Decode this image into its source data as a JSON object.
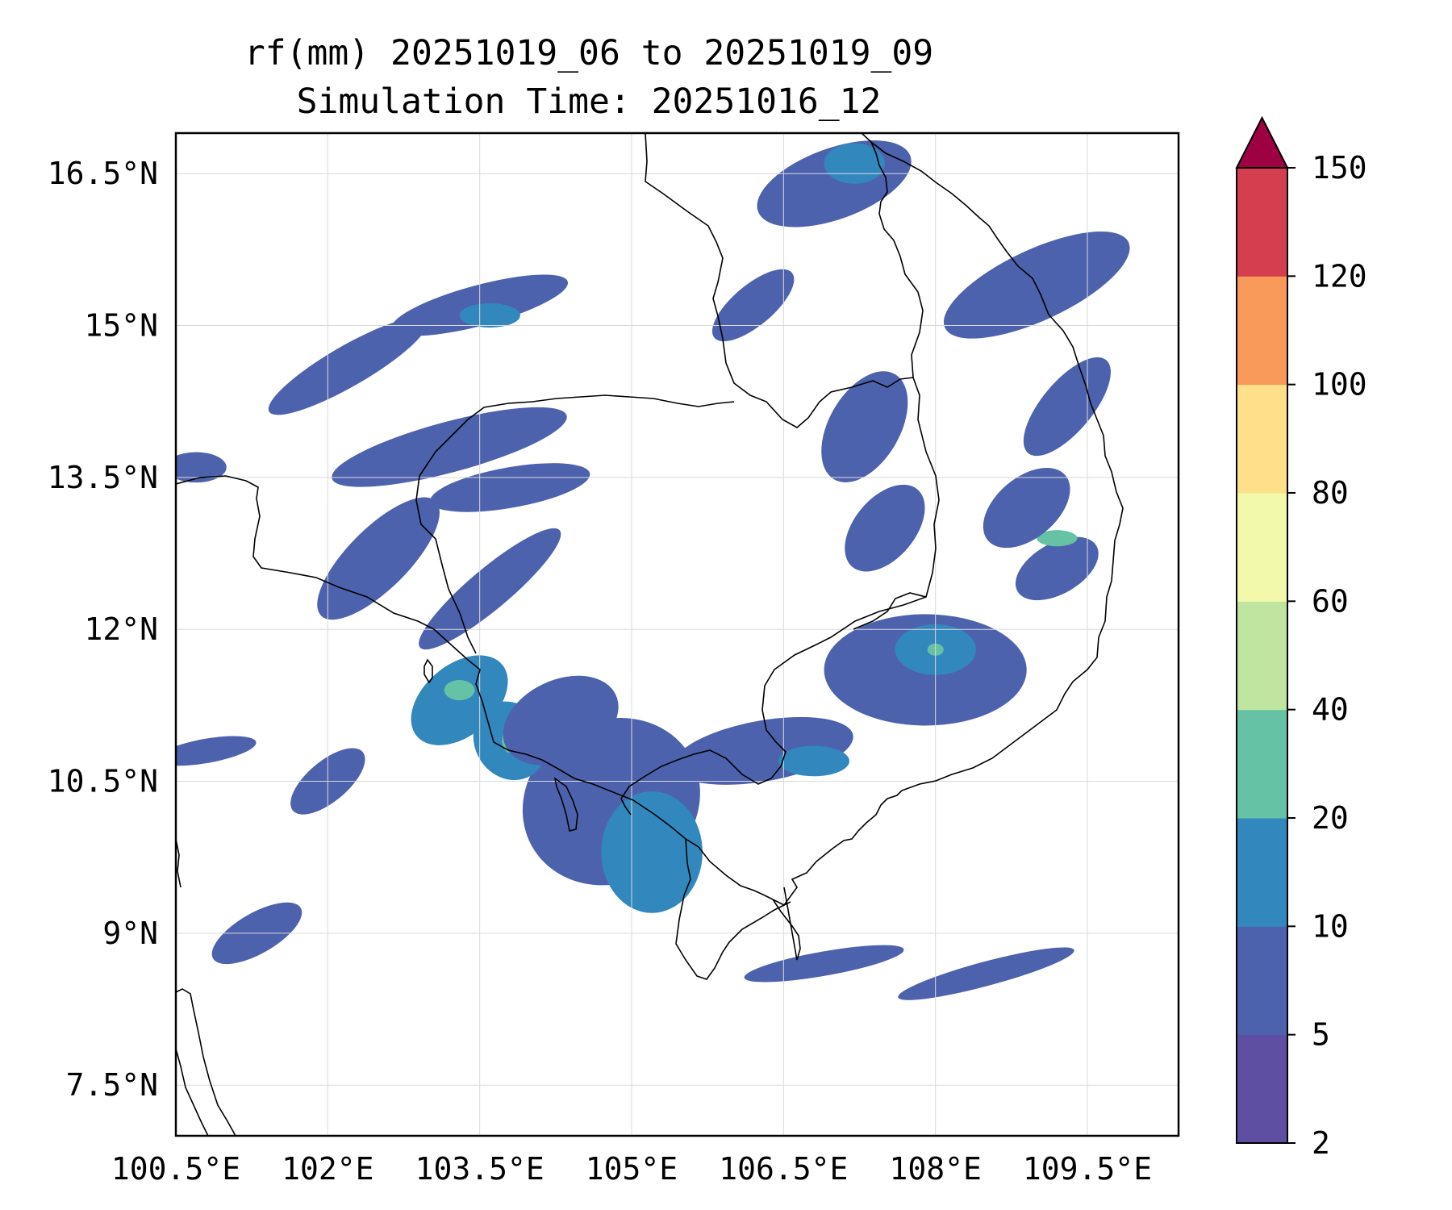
{
  "chart_data": {
    "type": "heatmap",
    "title": "rf(mm) 20251019_06 to 20251019_09",
    "subtitle": "Simulation Time: 20251016_12",
    "variable": "rf(mm)",
    "x_ticks": [
      "100.5°E",
      "102°E",
      "103.5°E",
      "105°E",
      "106.5°E",
      "108°E",
      "109.5°E"
    ],
    "x_tick_values": [
      100.5,
      102,
      103.5,
      105,
      106.5,
      108,
      109.5
    ],
    "y_ticks": [
      "16.5°N",
      "15°N",
      "13.5°N",
      "12°N",
      "10.5°N",
      "9°N",
      "7.5°N"
    ],
    "y_tick_values": [
      16.5,
      15,
      13.5,
      12,
      10.5,
      9,
      7.5
    ],
    "xlim": [
      100.5,
      110.4
    ],
    "ylim": [
      7.0,
      16.9
    ],
    "colorbar": {
      "levels": [
        2,
        5,
        10,
        20,
        40,
        60,
        80,
        100,
        120,
        150
      ],
      "tick_labels": [
        "2",
        "5",
        "10",
        "20",
        "40",
        "60",
        "80",
        "100",
        "120",
        "150"
      ],
      "colors": [
        "#5e4fa2",
        "#4d62ad",
        "#3288bd",
        "#66c2a5",
        "#bfe5a0",
        "#f3f9aa",
        "#fedf8a",
        "#f99a5a",
        "#d53e4f"
      ],
      "extend_color": "#9e0142",
      "extend": "max"
    },
    "rain_features": [
      {
        "lon": 104.8,
        "lat": 10.3,
        "rx": 0.9,
        "ry": 0.8,
        "level": 1,
        "rot": -30
      },
      {
        "lon": 105.2,
        "lat": 9.8,
        "rx": 0.5,
        "ry": 0.6,
        "level": 2,
        "rot": 0
      },
      {
        "lon": 103.3,
        "lat": 11.3,
        "rx": 0.55,
        "ry": 0.35,
        "level": 2,
        "rot": -40
      },
      {
        "lon": 103.3,
        "lat": 11.4,
        "rx": 0.15,
        "ry": 0.1,
        "level": 3,
        "rot": 0
      },
      {
        "lon": 103.8,
        "lat": 10.9,
        "rx": 0.35,
        "ry": 0.4,
        "level": 2,
        "rot": -30
      },
      {
        "lon": 103.8,
        "lat": 10.9,
        "rx": 0.08,
        "ry": 0.12,
        "level": 3,
        "rot": 0
      },
      {
        "lon": 104.3,
        "lat": 11.1,
        "rx": 0.6,
        "ry": 0.4,
        "level": 1,
        "rot": -25
      },
      {
        "lon": 107.9,
        "lat": 11.6,
        "rx": 1.0,
        "ry": 0.55,
        "level": 1,
        "rot": 0
      },
      {
        "lon": 108.0,
        "lat": 11.8,
        "rx": 0.4,
        "ry": 0.25,
        "level": 2,
        "rot": 0
      },
      {
        "lon": 108.0,
        "lat": 11.8,
        "rx": 0.08,
        "ry": 0.06,
        "level": 3,
        "rot": 0
      },
      {
        "lon": 109.2,
        "lat": 12.6,
        "rx": 0.45,
        "ry": 0.25,
        "level": 1,
        "rot": -30
      },
      {
        "lon": 109.2,
        "lat": 12.9,
        "rx": 0.2,
        "ry": 0.08,
        "level": 3,
        "rot": 0
      },
      {
        "lon": 108.9,
        "lat": 13.2,
        "rx": 0.5,
        "ry": 0.3,
        "level": 1,
        "rot": -40
      },
      {
        "lon": 109.0,
        "lat": 15.4,
        "rx": 1.0,
        "ry": 0.35,
        "level": 1,
        "rot": -25
      },
      {
        "lon": 107.0,
        "lat": 16.4,
        "rx": 0.8,
        "ry": 0.35,
        "level": 1,
        "rot": -20
      },
      {
        "lon": 107.2,
        "lat": 16.6,
        "rx": 0.3,
        "ry": 0.2,
        "level": 2,
        "rot": 0
      },
      {
        "lon": 103.5,
        "lat": 15.2,
        "rx": 0.9,
        "ry": 0.2,
        "level": 1,
        "rot": -15
      },
      {
        "lon": 103.6,
        "lat": 15.1,
        "rx": 0.3,
        "ry": 0.12,
        "level": 2,
        "rot": 0
      },
      {
        "lon": 102.2,
        "lat": 14.6,
        "rx": 0.9,
        "ry": 0.2,
        "level": 1,
        "rot": -30
      },
      {
        "lon": 103.2,
        "lat": 13.8,
        "rx": 1.2,
        "ry": 0.25,
        "level": 1,
        "rot": -15
      },
      {
        "lon": 103.8,
        "lat": 13.4,
        "rx": 0.8,
        "ry": 0.2,
        "level": 1,
        "rot": -10
      },
      {
        "lon": 102.5,
        "lat": 12.7,
        "rx": 0.8,
        "ry": 0.3,
        "level": 1,
        "rot": -45
      },
      {
        "lon": 103.6,
        "lat": 12.4,
        "rx": 0.9,
        "ry": 0.2,
        "level": 1,
        "rot": -40
      },
      {
        "lon": 106.3,
        "lat": 10.8,
        "rx": 0.9,
        "ry": 0.3,
        "level": 1,
        "rot": -10
      },
      {
        "lon": 106.8,
        "lat": 10.7,
        "rx": 0.35,
        "ry": 0.15,
        "level": 2,
        "rot": 0
      },
      {
        "lon": 107.3,
        "lat": 14.0,
        "rx": 0.6,
        "ry": 0.35,
        "level": 1,
        "rot": -60
      },
      {
        "lon": 107.5,
        "lat": 13.0,
        "rx": 0.5,
        "ry": 0.3,
        "level": 1,
        "rot": -50
      },
      {
        "lon": 106.2,
        "lat": 15.2,
        "rx": 0.5,
        "ry": 0.2,
        "level": 1,
        "rot": -40
      },
      {
        "lon": 101.3,
        "lat": 9.0,
        "rx": 0.5,
        "ry": 0.2,
        "level": 1,
        "rot": -30
      },
      {
        "lon": 102.0,
        "lat": 10.5,
        "rx": 0.45,
        "ry": 0.2,
        "level": 1,
        "rot": -40
      },
      {
        "lon": 100.8,
        "lat": 10.8,
        "rx": 0.5,
        "ry": 0.12,
        "level": 1,
        "rot": -10
      },
      {
        "lon": 106.9,
        "lat": 8.7,
        "rx": 0.8,
        "ry": 0.12,
        "level": 1,
        "rot": -10
      },
      {
        "lon": 108.5,
        "lat": 8.6,
        "rx": 0.9,
        "ry": 0.12,
        "level": 1,
        "rot": -15
      },
      {
        "lon": 109.3,
        "lat": 14.2,
        "rx": 0.6,
        "ry": 0.25,
        "level": 1,
        "rot": -50
      },
      {
        "lon": 100.7,
        "lat": 13.6,
        "rx": 0.3,
        "ry": 0.15,
        "level": 1,
        "rot": 0
      }
    ]
  }
}
